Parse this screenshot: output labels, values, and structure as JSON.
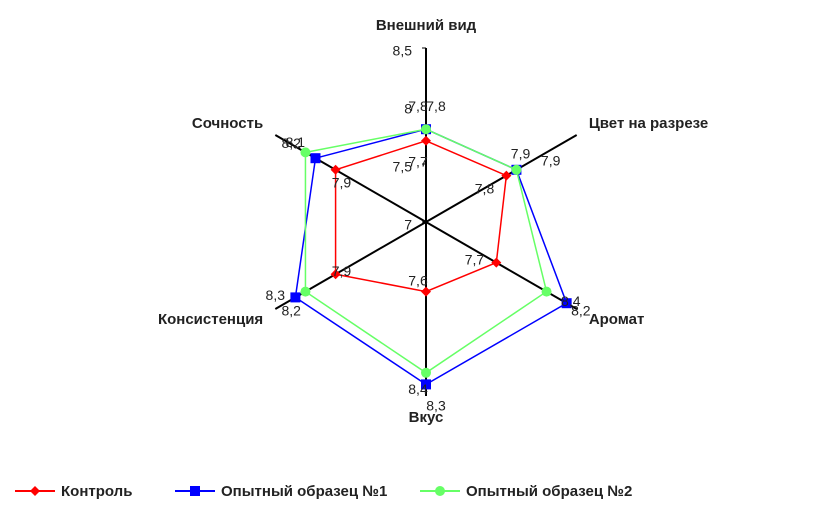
{
  "chart_data": {
    "type": "radar",
    "categories": [
      "Внешний вид",
      "Цвет на разрезе",
      "Аромат",
      "Вкус",
      "Консистенция",
      "Сочность"
    ],
    "rlim": [
      7,
      8.5
    ],
    "rticks": [
      7,
      {
        "value": 7.5,
        "label": "7,5"
      },
      8,
      {
        "value": 8.5,
        "label": "8,5"
      }
    ],
    "legend": "bottom",
    "series": [
      {
        "name": "Контроль",
        "color": "#ff0000",
        "marker": "diamond",
        "values": [
          7.7,
          7.8,
          7.7,
          7.6,
          7.9,
          7.9
        ],
        "value_labels": [
          "7,7",
          "7,8",
          "7,7",
          "7,6",
          "7,9",
          "7,9"
        ]
      },
      {
        "name": "Опытный образец №1",
        "color": "#0000ff",
        "marker": "square",
        "values": [
          7.8,
          7.9,
          8.4,
          8.4,
          8.3,
          8.1
        ],
        "value_labels": [
          "7,8",
          "7,9",
          "8,4",
          "8,4",
          "8,3",
          "8,1"
        ]
      },
      {
        "name": "Опытный образец №2",
        "color": "#66ff66",
        "marker": "circle",
        "values": [
          7.8,
          7.9,
          8.2,
          8.3,
          8.2,
          8.2
        ],
        "value_labels": [
          "7,8",
          "7,9",
          "8,2",
          "8,3",
          "8,2",
          "8,2"
        ]
      }
    ]
  }
}
